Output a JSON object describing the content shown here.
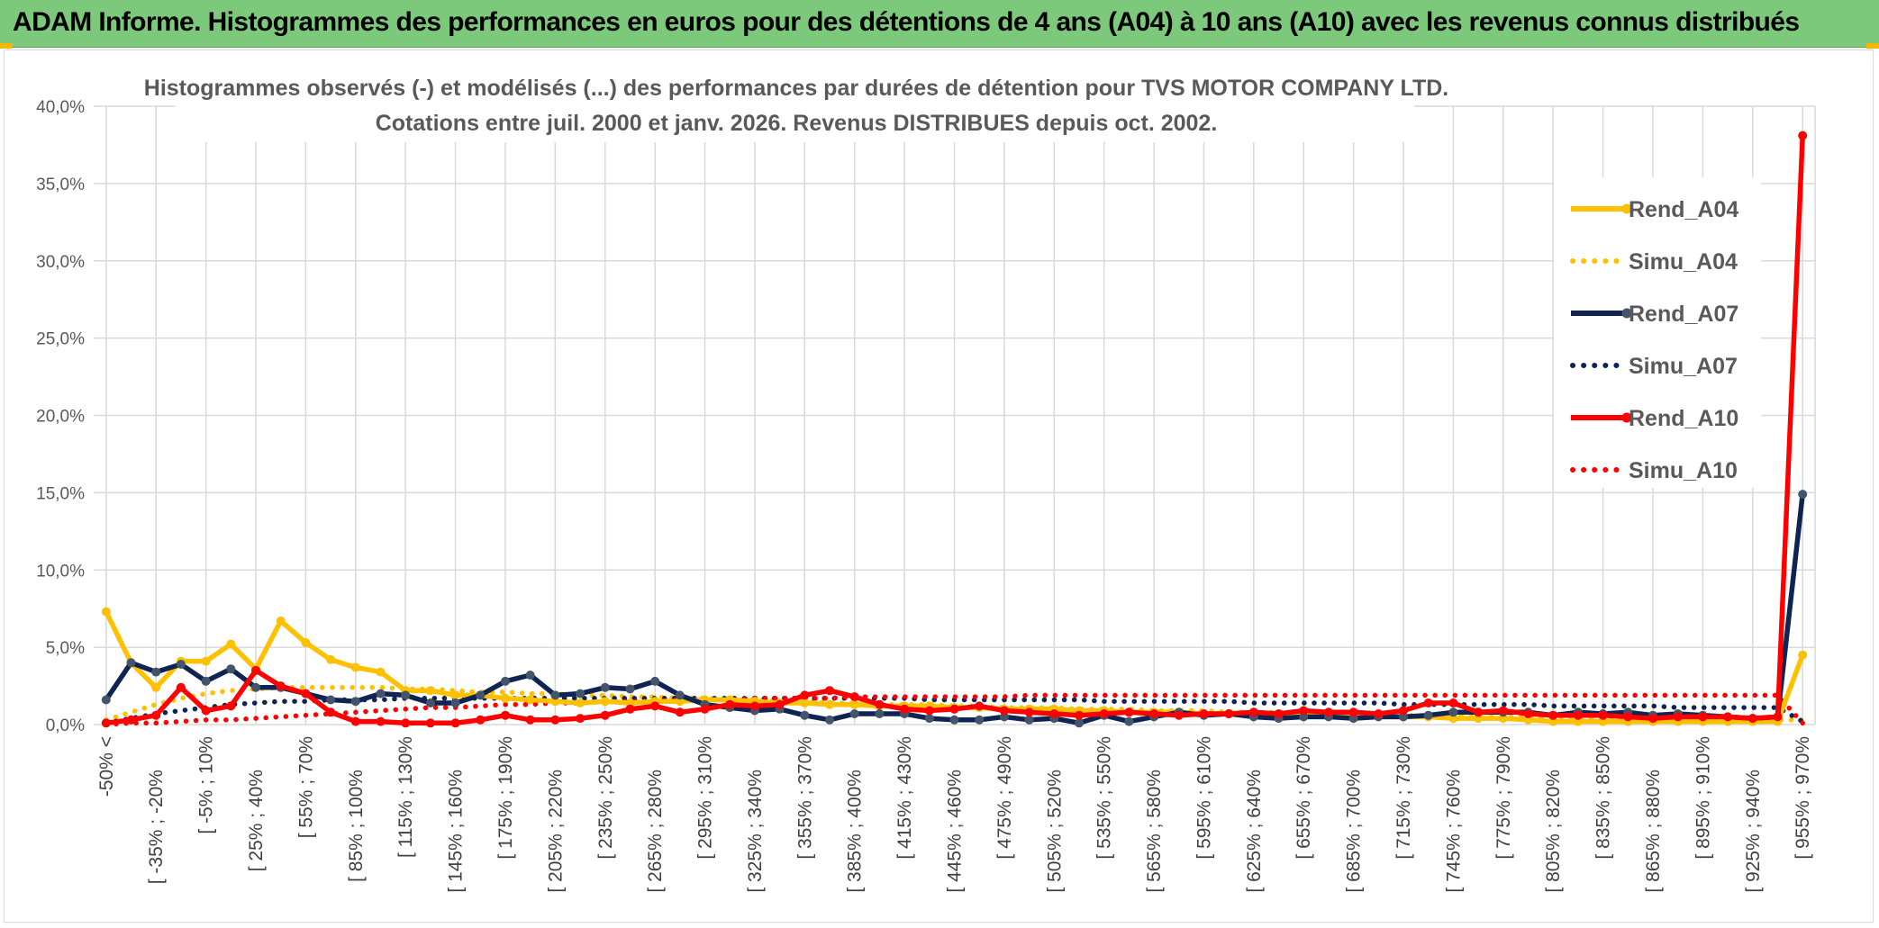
{
  "header": {
    "title": "ADAM Informe. Histogrammes des performances en euros pour des détentions de 4 ans (A04) à 10 ans (A10) avec les revenus connus distribués"
  },
  "chart_data": {
    "type": "line",
    "title_line1": "Histogrammes observés (-) et modélisés (...) des performances par durées de détention pour TVS MOTOR COMPANY LTD.",
    "title_line2": "Cotations entre juil. 2000 et janv. 2026. Revenus DISTRIBUES depuis oct. 2002.",
    "ylim": [
      0,
      40
    ],
    "yticks": [
      "0,0%",
      "5,0%",
      "10,0%",
      "15,0%",
      "20,0%",
      "25,0%",
      "30,0%",
      "35,0%",
      "40,0%"
    ],
    "xtick_labels": [
      "-50% <",
      "[ -35% ; -20%",
      "[ -5% ; 10%",
      "[ 25% ; 40%",
      "[ 55% ; 70%",
      "[ 85% ; 100%",
      "[ 115% ; 130%",
      "[ 145% ; 160%",
      "[ 175% ; 190%",
      "[ 205% ; 220%",
      "[ 235% ; 250%",
      "[ 265% ; 280%",
      "[ 295% ; 310%",
      "[ 325% ; 340%",
      "[ 355% ; 370%",
      "[ 385% ; 400%",
      "[ 415% ; 430%",
      "[ 445% ; 460%",
      "[ 475% ; 490%",
      "[ 505% ; 520%",
      "[ 535% ; 550%",
      "[ 565% ; 580%",
      "[ 595% ; 610%",
      "[ 625% ; 640%",
      "[ 655% ; 670%",
      "[ 685% ; 700%",
      "[ 715% ; 730%",
      "[ 745% ; 760%",
      "[ 775% ; 790%",
      "[ 805% ; 820%",
      "[ 835% ; 850%",
      "[ 865% ; 880%",
      "[ 895% ; 910%",
      "[ 925% ; 940%",
      "[ 955% ; 970%"
    ],
    "categories_count": 69,
    "series": [
      {
        "name": "Rend_A04",
        "style": "solid",
        "color": "#ffc000",
        "values": [
          7.3,
          4.0,
          2.4,
          4.1,
          4.1,
          5.2,
          3.6,
          6.7,
          5.3,
          4.2,
          3.7,
          3.4,
          2.2,
          2.2,
          1.9,
          1.9,
          1.7,
          1.6,
          1.5,
          1.4,
          1.5,
          1.4,
          1.5,
          1.5,
          1.6,
          1.6,
          1.5,
          1.4,
          1.4,
          1.3,
          1.3,
          1.2,
          1.2,
          1.2,
          1.1,
          1.1,
          1.0,
          1.0,
          1.0,
          0.9,
          0.9,
          0.8,
          0.8,
          0.8,
          0.7,
          0.7,
          0.7,
          0.6,
          0.6,
          0.6,
          0.5,
          0.5,
          0.5,
          0.5,
          0.4,
          0.4,
          0.4,
          0.3,
          0.2,
          0.2,
          0.2,
          0.2,
          0.2,
          0.2,
          0.2,
          0.2,
          0.2,
          0.2,
          4.5
        ]
      },
      {
        "name": "Simu_A04",
        "style": "dotted",
        "color": "#ffc000",
        "values": [
          0.3,
          0.8,
          1.3,
          1.7,
          2.0,
          2.2,
          2.3,
          2.4,
          2.4,
          2.4,
          2.4,
          2.4,
          2.3,
          2.3,
          2.2,
          2.1,
          2.1,
          2.0,
          2.0,
          1.9,
          1.9,
          1.8,
          1.8,
          1.7,
          1.7,
          1.6,
          1.6,
          1.5,
          1.5,
          1.4,
          1.4,
          1.3,
          1.3,
          1.3,
          1.2,
          1.2,
          1.1,
          1.1,
          1.1,
          1.0,
          1.0,
          1.0,
          0.9,
          0.9,
          0.9,
          0.8,
          0.8,
          0.8,
          0.7,
          0.7,
          0.7,
          0.6,
          0.6,
          0.6,
          0.6,
          0.5,
          0.5,
          0.5,
          0.5,
          0.4,
          0.4,
          0.4,
          0.4,
          0.4,
          0.3,
          0.3,
          0.3,
          0.3,
          0.3
        ]
      },
      {
        "name": "Rend_A07",
        "style": "solid",
        "color": "#0f2452",
        "values": [
          1.6,
          4.0,
          3.4,
          3.9,
          2.8,
          3.6,
          2.4,
          2.4,
          2.0,
          1.6,
          1.5,
          2.0,
          1.9,
          1.4,
          1.4,
          1.9,
          2.8,
          3.2,
          1.9,
          2.0,
          2.4,
          2.3,
          2.8,
          1.9,
          1.3,
          1.1,
          0.9,
          1.0,
          0.6,
          0.3,
          0.7,
          0.7,
          0.7,
          0.4,
          0.3,
          0.3,
          0.5,
          0.3,
          0.4,
          0.1,
          0.6,
          0.2,
          0.5,
          0.8,
          0.6,
          0.7,
          0.5,
          0.4,
          0.5,
          0.5,
          0.4,
          0.5,
          0.5,
          0.6,
          0.8,
          0.8,
          0.8,
          0.8,
          0.6,
          0.8,
          0.7,
          0.8,
          0.6,
          0.7,
          0.6,
          0.5,
          0.4,
          0.5,
          14.9
        ]
      },
      {
        "name": "Simu_A07",
        "style": "dotted",
        "color": "#0f2452",
        "values": [
          0.1,
          0.4,
          0.7,
          0.9,
          1.1,
          1.3,
          1.4,
          1.5,
          1.5,
          1.6,
          1.6,
          1.6,
          1.7,
          1.7,
          1.7,
          1.7,
          1.7,
          1.7,
          1.7,
          1.7,
          1.7,
          1.7,
          1.7,
          1.7,
          1.7,
          1.7,
          1.7,
          1.7,
          1.7,
          1.7,
          1.7,
          1.7,
          1.7,
          1.6,
          1.6,
          1.6,
          1.6,
          1.6,
          1.6,
          1.6,
          1.5,
          1.5,
          1.5,
          1.5,
          1.5,
          1.5,
          1.4,
          1.4,
          1.4,
          1.4,
          1.4,
          1.4,
          1.3,
          1.3,
          1.3,
          1.3,
          1.3,
          1.3,
          1.2,
          1.2,
          1.2,
          1.2,
          1.2,
          1.1,
          1.1,
          1.1,
          1.1,
          1.1,
          0.2
        ]
      },
      {
        "name": "Rend_A10",
        "style": "solid",
        "color": "#ff0000",
        "values": [
          0.1,
          0.3,
          0.6,
          2.4,
          0.9,
          1.2,
          3.5,
          2.5,
          2.0,
          0.8,
          0.2,
          0.2,
          0.1,
          0.1,
          0.1,
          0.3,
          0.6,
          0.3,
          0.3,
          0.4,
          0.6,
          1.0,
          1.2,
          0.8,
          1.0,
          1.3,
          1.2,
          1.3,
          1.9,
          2.2,
          1.8,
          1.3,
          1.0,
          0.9,
          1.0,
          1.2,
          0.9,
          0.8,
          0.7,
          0.6,
          0.7,
          0.8,
          0.7,
          0.6,
          0.7,
          0.7,
          0.8,
          0.7,
          0.9,
          0.8,
          0.8,
          0.7,
          0.9,
          1.4,
          1.4,
          0.8,
          0.9,
          0.7,
          0.6,
          0.6,
          0.6,
          0.5,
          0.4,
          0.5,
          0.5,
          0.5,
          0.4,
          0.5,
          38.1
        ]
      },
      {
        "name": "Simu_A10",
        "style": "dotted",
        "color": "#ff0000",
        "values": [
          0.0,
          0.1,
          0.1,
          0.2,
          0.3,
          0.3,
          0.4,
          0.5,
          0.6,
          0.7,
          0.8,
          0.9,
          1.0,
          1.1,
          1.1,
          1.2,
          1.3,
          1.3,
          1.4,
          1.4,
          1.5,
          1.5,
          1.5,
          1.6,
          1.6,
          1.6,
          1.7,
          1.7,
          1.7,
          1.7,
          1.8,
          1.8,
          1.8,
          1.8,
          1.8,
          1.8,
          1.8,
          1.9,
          1.9,
          1.9,
          1.9,
          1.9,
          1.9,
          1.9,
          1.9,
          1.9,
          1.9,
          1.9,
          1.9,
          1.9,
          1.9,
          1.9,
          1.9,
          1.9,
          1.9,
          1.9,
          1.9,
          1.9,
          1.9,
          1.9,
          1.9,
          1.9,
          1.9,
          1.9,
          1.9,
          1.9,
          1.9,
          1.9,
          0.1
        ]
      }
    ],
    "legend_position": "right"
  }
}
